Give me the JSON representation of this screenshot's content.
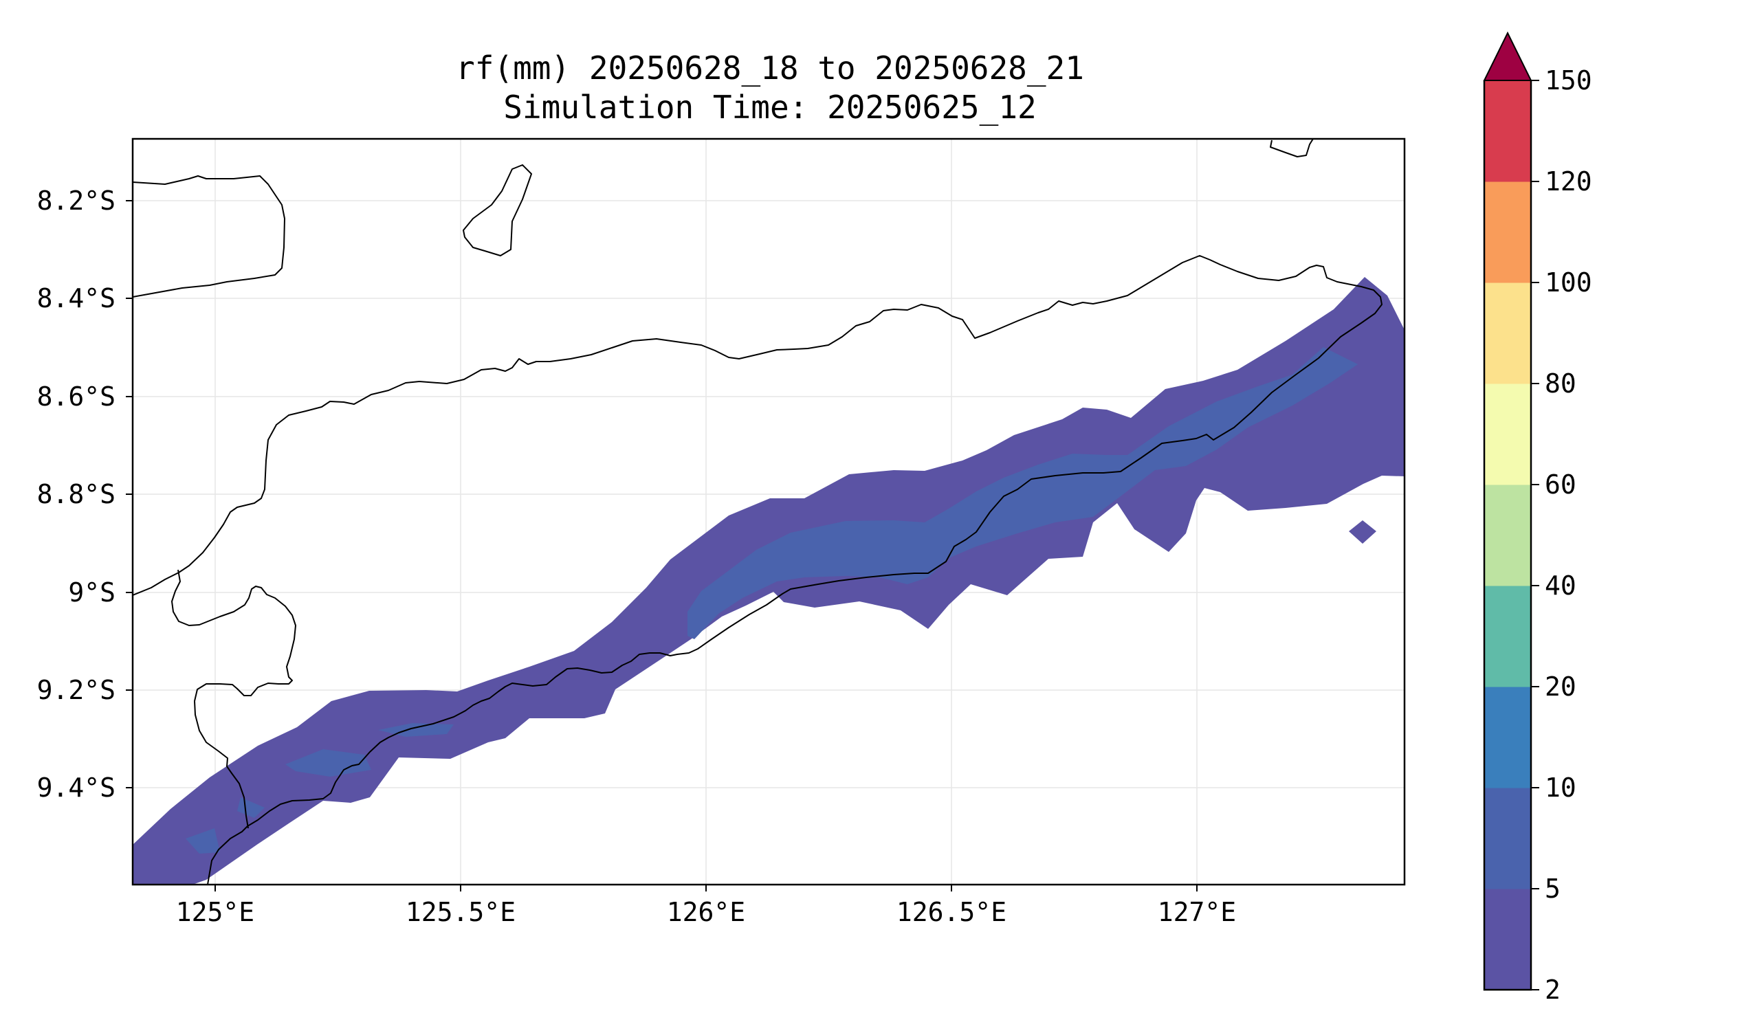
{
  "title": {
    "line1": "rf(mm) 20250628_18 to 20250628_21",
    "line2": "Simulation Time: 20250625_12"
  },
  "map": {
    "lon_range": [
      124.82,
      127.42
    ],
    "lat_range": [
      -9.58,
      -8.06
    ],
    "xticks": [
      "125°E",
      "125.5°E",
      "126°E",
      "126.5°E",
      "127°E"
    ],
    "yticks": [
      "8.2°S",
      "8.4°S",
      "8.6°S",
      "8.8°S",
      "9°S",
      "9.2°S",
      "9.4°S"
    ],
    "grid": true,
    "rain_colors": {
      "2-5": "#5b53a4",
      "5-10": "#4a63ad"
    }
  },
  "colorbar": {
    "levels": [
      "2",
      "5",
      "10",
      "20",
      "40",
      "60",
      "80",
      "100",
      "120",
      "150"
    ],
    "colors": [
      "#5b53a4",
      "#4a63ad",
      "#3a7fbc",
      "#60bba8",
      "#bde3a1",
      "#f4fbaf",
      "#fce18c",
      "#f99c5a",
      "#d83c4e"
    ],
    "extend_color": "#9e0142"
  }
}
